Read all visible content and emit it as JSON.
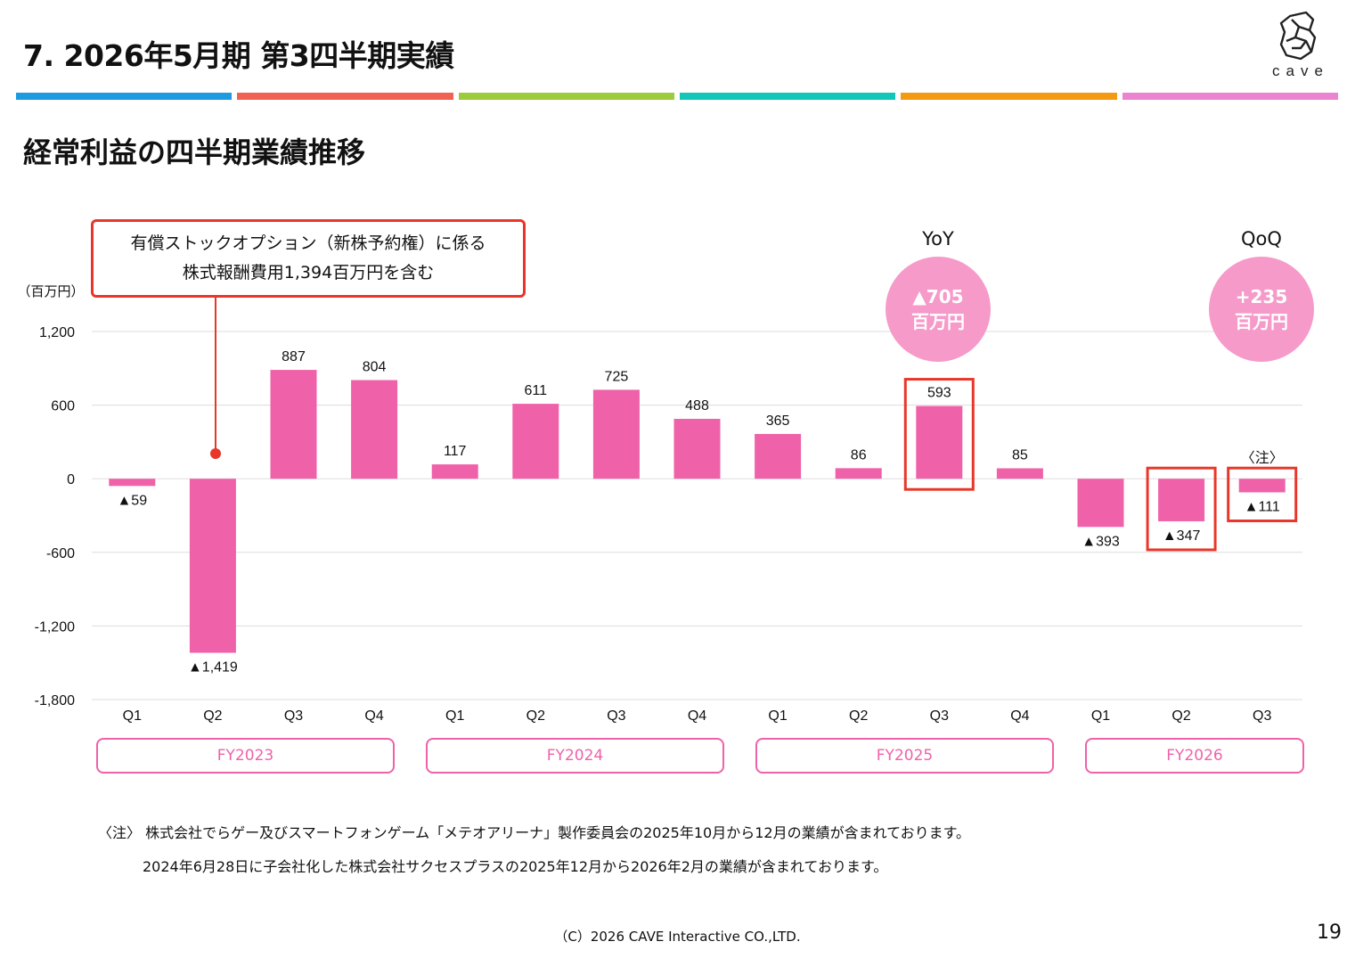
{
  "slide": {
    "title": "7.  2026年5月期  第3四半期実績",
    "subtitle": "経常利益の四半期業績推移",
    "logo_text": "cave",
    "color_bar": [
      "#1e9ae0",
      "#f26252",
      "#9ccb3b",
      "#12c6b8",
      "#f39a12",
      "#ea84d1"
    ]
  },
  "callout": {
    "line1": "有償ストックオプション（新株予約権）に係る",
    "line2": "株式報酬費用1,394百万円を含む"
  },
  "yoy": {
    "title": "YoY",
    "value": "▲705",
    "unit": "百万円"
  },
  "qoq": {
    "title": "QoQ",
    "value": "+235",
    "unit": "百万円"
  },
  "fiscal_years": [
    "FY2023",
    "FY2024",
    "FY2025",
    "FY2026"
  ],
  "notes": {
    "line1": "〈注〉  株式会社でらゲー及びスマートフォンゲーム「メテオアリーナ」製作委員会の2025年10月から12月の業績が含まれております。",
    "line2": "2024年6月28日に子会社化した株式会社サクセスプラスの2025年12月から2026年2月の業績が含まれております。"
  },
  "footer": {
    "copyright": "（C）2026 CAVE Interactive CO.,LTD.",
    "page_number": "19"
  },
  "colors": {
    "bar": "#ef62a9",
    "highlight": "#e8372a",
    "bubble": "#f69ac9",
    "grid": "#dddddd"
  },
  "chart_data": {
    "type": "bar",
    "ylabel": "（百万円）",
    "ylim": [
      -1800,
      1200
    ],
    "yticks": [
      1200,
      600,
      0,
      -600,
      -1200,
      -1800
    ],
    "ytick_labels": [
      "1,200",
      "600",
      "0",
      "-600",
      "-1,200",
      "-1,800"
    ],
    "categories": [
      "Q1",
      "Q2",
      "Q3",
      "Q4",
      "Q1",
      "Q2",
      "Q3",
      "Q4",
      "Q1",
      "Q2",
      "Q3",
      "Q4",
      "Q1",
      "Q2",
      "Q3"
    ],
    "groups": [
      {
        "label": "FY2023",
        "count": 4
      },
      {
        "label": "FY2024",
        "count": 4
      },
      {
        "label": "FY2025",
        "count": 4
      },
      {
        "label": "FY2026",
        "count": 3
      }
    ],
    "values": [
      -59,
      -1419,
      887,
      804,
      117,
      611,
      725,
      488,
      365,
      86,
      593,
      85,
      -393,
      -347,
      -111
    ],
    "data_labels": [
      "▲59",
      "▲1,419",
      "887",
      "804",
      "117",
      "611",
      "725",
      "488",
      "365",
      "86",
      "593",
      "85",
      "▲393",
      "▲347",
      "▲111"
    ],
    "highlighted_bars": [
      10,
      13,
      14
    ],
    "note_marker": {
      "bar": 14,
      "text": "〈注〉"
    },
    "grid": true
  }
}
